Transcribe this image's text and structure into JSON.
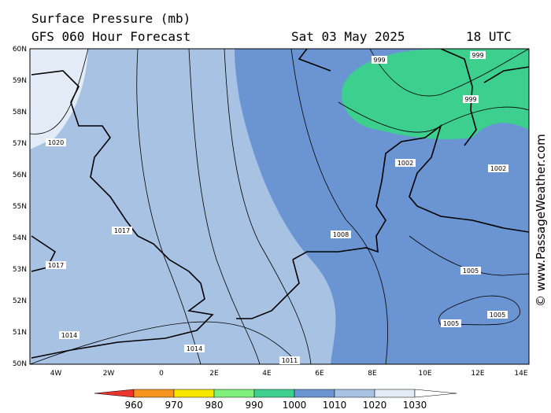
{
  "header": {
    "title": "Surface Pressure (mb)",
    "subtitle": "GFS 060 Hour Forecast",
    "date": "Sat 03 May 2025",
    "time": "18 UTC"
  },
  "credit": "© www.PassageWeather.com",
  "map": {
    "lat_labels": [
      "60N",
      "59N",
      "58N",
      "57N",
      "56N",
      "55N",
      "54N",
      "53N",
      "52N",
      "51N",
      "50N"
    ],
    "lon_labels": [
      "4W",
      "2W",
      "0",
      "2E",
      "4E",
      "6E",
      "8E",
      "10E",
      "12E",
      "14E"
    ],
    "isobar_labels": [
      "1020",
      "1017",
      "1017",
      "1014",
      "1014",
      "1011",
      "1008",
      "1005",
      "1005",
      "1005",
      "1002",
      "1002",
      "999",
      "999",
      "999"
    ]
  },
  "colorbar": {
    "values": [
      "960",
      "970",
      "980",
      "990",
      "1000",
      "1010",
      "1020",
      "1030"
    ],
    "colors": [
      "#e8362d",
      "#f7941d",
      "#f7e600",
      "#7ff07b",
      "#3ccf8e",
      "#6a95d2",
      "#a8c2e4",
      "#e3ebf6"
    ]
  }
}
